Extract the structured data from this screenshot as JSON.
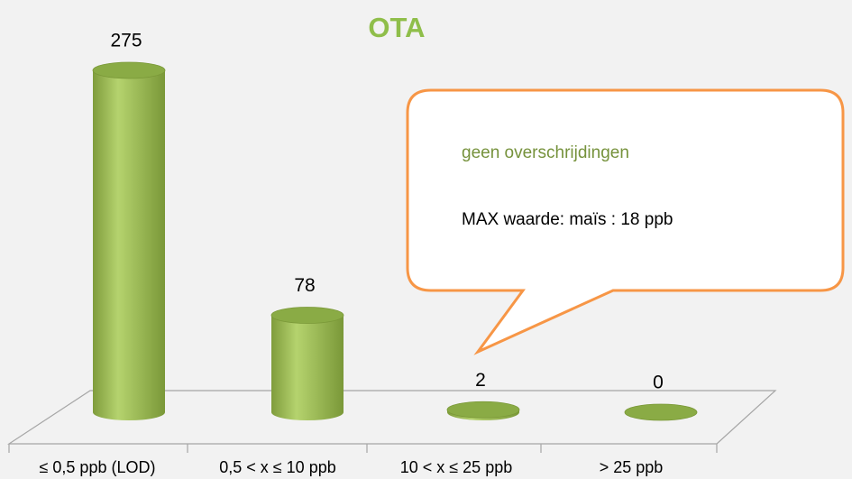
{
  "chart_data": {
    "type": "bar",
    "title": "OTA",
    "categories": [
      "≤ 0,5 ppb (LOD)",
      "0,5 < x ≤ 10 ppb",
      "10 < x ≤ 25 ppb",
      "> 25 ppb"
    ],
    "values": [
      275,
      78,
      2,
      0
    ],
    "value_labels": [
      "275",
      "78",
      "2",
      "0"
    ],
    "color": "#9bbb59",
    "annotations": [
      "geen overschrijdingen",
      "MAX waarde: maïs : 18 ppb"
    ]
  }
}
